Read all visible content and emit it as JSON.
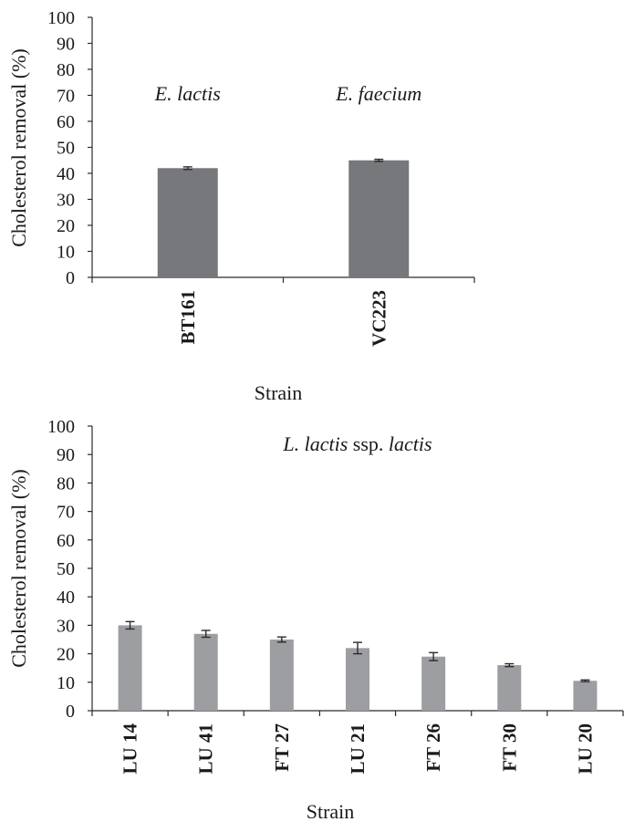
{
  "chart_data": [
    {
      "type": "bar",
      "title": "",
      "xlabel": "Strain",
      "ylabel": "Cholesterol removal (%)",
      "ylim": [
        0,
        100
      ],
      "yticks": [
        0,
        10,
        20,
        30,
        40,
        50,
        60,
        70,
        80,
        90,
        100
      ],
      "grid": false,
      "bar_color": "#77787b",
      "categories": [
        "BT161",
        "VC223"
      ],
      "values": [
        42,
        45
      ],
      "errors": [
        0.5,
        0.4
      ],
      "annotations": [
        {
          "parts": [
            {
              "text": "E. lactis",
              "italic": true
            }
          ],
          "category_index": 0
        },
        {
          "parts": [
            {
              "text": "E. faecium",
              "italic": true
            }
          ],
          "category_index": 1
        }
      ]
    },
    {
      "type": "bar",
      "title": "",
      "xlabel": "Strain",
      "ylabel": "Cholesterol removal (%)",
      "ylim": [
        0,
        100
      ],
      "yticks": [
        0,
        10,
        20,
        30,
        40,
        50,
        60,
        70,
        80,
        90,
        100
      ],
      "grid": false,
      "bar_color": "#9d9ea1",
      "categories": [
        "LU 14",
        "LU 41",
        "FT 27",
        "LU 21",
        "FT 26",
        "FT 30",
        "LU 20"
      ],
      "values": [
        30,
        27,
        25,
        22,
        19,
        16,
        10.5
      ],
      "errors": [
        1.3,
        1.2,
        0.9,
        2.0,
        1.4,
        0.5,
        0.3
      ],
      "annotations": [
        {
          "parts": [
            {
              "text": "L. lactis",
              "italic": true
            },
            {
              "text": " ssp. ",
              "italic": false
            },
            {
              "text": "lactis",
              "italic": true
            }
          ],
          "category_index": 3
        }
      ]
    }
  ]
}
